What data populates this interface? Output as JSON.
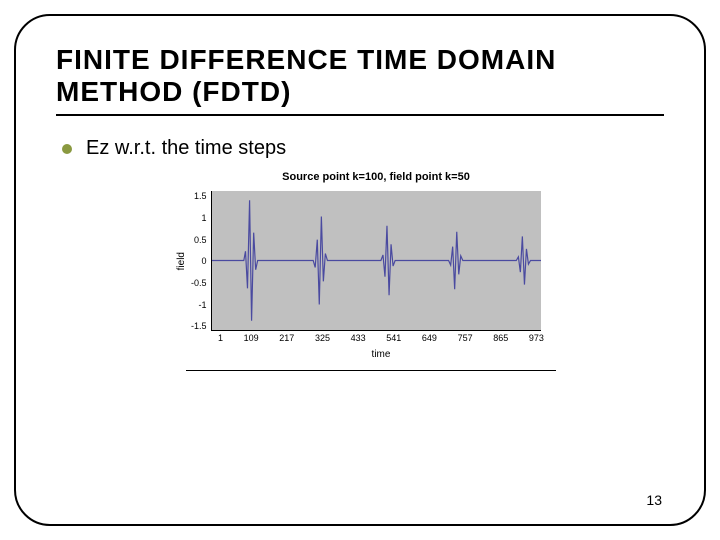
{
  "title": "FINITE DIFFERENCE TIME DOMAIN METHOD (FDTD)",
  "bullet": "Ez w.r.t. the time steps",
  "chart": {
    "type": "line",
    "title": "Source point k=100, field point k=50",
    "xlabel": "time",
    "ylabel": "field",
    "background_color": "#c0c0c0",
    "line_color": "#4a4aa0",
    "line_width": 1.2,
    "ylim": [
      -1.5,
      1.5
    ],
    "yticks": [
      "1.5",
      "1",
      "0.5",
      "0",
      "-0.5",
      "-1",
      "-1.5"
    ],
    "xticks": [
      "1",
      "109",
      "217",
      "325",
      "433",
      "541",
      "649",
      "757",
      "865",
      "973"
    ],
    "series": [
      {
        "x": 1,
        "y": 0
      },
      {
        "x": 95,
        "y": 0
      },
      {
        "x": 100,
        "y": 0.2
      },
      {
        "x": 106,
        "y": -0.6
      },
      {
        "x": 112,
        "y": 1.3
      },
      {
        "x": 118,
        "y": -1.3
      },
      {
        "x": 124,
        "y": 0.6
      },
      {
        "x": 130,
        "y": -0.2
      },
      {
        "x": 136,
        "y": 0
      },
      {
        "x": 300,
        "y": 0
      },
      {
        "x": 306,
        "y": -0.15
      },
      {
        "x": 312,
        "y": 0.45
      },
      {
        "x": 318,
        "y": -0.95
      },
      {
        "x": 324,
        "y": 0.95
      },
      {
        "x": 330,
        "y": -0.45
      },
      {
        "x": 336,
        "y": 0.15
      },
      {
        "x": 342,
        "y": 0
      },
      {
        "x": 500,
        "y": 0
      },
      {
        "x": 506,
        "y": 0.12
      },
      {
        "x": 512,
        "y": -0.35
      },
      {
        "x": 518,
        "y": 0.75
      },
      {
        "x": 524,
        "y": -0.75
      },
      {
        "x": 530,
        "y": 0.35
      },
      {
        "x": 536,
        "y": -0.12
      },
      {
        "x": 542,
        "y": 0
      },
      {
        "x": 700,
        "y": 0
      },
      {
        "x": 706,
        "y": -0.1
      },
      {
        "x": 712,
        "y": 0.3
      },
      {
        "x": 718,
        "y": -0.62
      },
      {
        "x": 724,
        "y": 0.62
      },
      {
        "x": 730,
        "y": -0.3
      },
      {
        "x": 736,
        "y": 0.1
      },
      {
        "x": 742,
        "y": 0
      },
      {
        "x": 900,
        "y": 0
      },
      {
        "x": 906,
        "y": 0.08
      },
      {
        "x": 912,
        "y": -0.25
      },
      {
        "x": 918,
        "y": 0.52
      },
      {
        "x": 924,
        "y": -0.52
      },
      {
        "x": 930,
        "y": 0.25
      },
      {
        "x": 936,
        "y": -0.08
      },
      {
        "x": 942,
        "y": 0
      },
      {
        "x": 973,
        "y": 0
      }
    ],
    "xlim": [
      1,
      973
    ]
  },
  "page_number": "13",
  "colors": {
    "bullet": "#8a9940",
    "border": "#000000",
    "text": "#000000"
  }
}
